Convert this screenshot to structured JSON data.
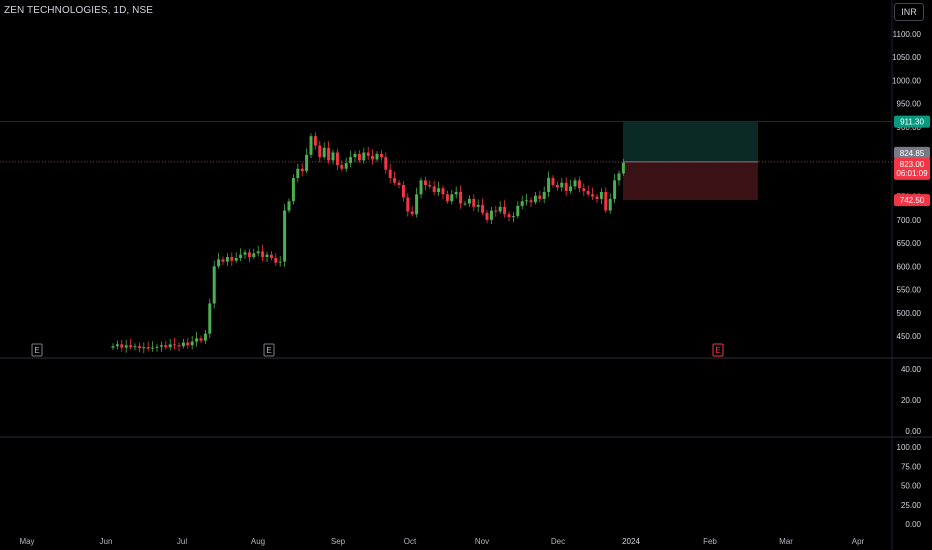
{
  "header": {
    "symbol": "ZEN TECHNOLOGIES, 1D, NSE",
    "currency": "INR"
  },
  "colors": {
    "up": "#4caf50",
    "down": "#f23645",
    "profit_zone": "#0b2a26",
    "loss_zone": "#3a1115",
    "target": "#089981",
    "stop": "#f23645",
    "grid": "#2a2e39"
  },
  "chart_data": {
    "type": "candlestick",
    "x_ticks": [
      "May",
      "Jun",
      "Jul",
      "Aug",
      "Sep",
      "Oct",
      "Nov",
      "Dec",
      "2024",
      "Feb",
      "Mar",
      "Apr"
    ],
    "y_ticks": [
      "450.00",
      "500.00",
      "550.00",
      "600.00",
      "650.00",
      "700.00",
      "750.00",
      "800.00",
      "850.00",
      "900.00",
      "950.00",
      "1000.00",
      "1050.00",
      "1100.00"
    ],
    "ylim": [
      405,
      1135
    ],
    "price_labels": {
      "target": "911.30",
      "entry": "824.85",
      "last": "823.00",
      "countdown": "06:01:09",
      "stop": "742.50"
    },
    "events": [
      "E",
      "E",
      "E"
    ],
    "pane2": {
      "ticks": [
        "40.00",
        "20.00",
        "0.00"
      ],
      "ylim": [
        0,
        50
      ]
    },
    "pane3": {
      "ticks": [
        "100.00",
        "75.00",
        "50.00",
        "25.00",
        "0.00"
      ],
      "ylim": [
        0,
        105
      ]
    },
    "series_close": [
      428,
      432,
      425,
      430,
      426,
      428,
      424,
      426,
      423,
      425,
      427,
      430,
      426,
      432,
      430,
      428,
      436,
      430,
      438,
      445,
      440,
      455,
      520,
      600,
      615,
      610,
      620,
      612,
      618,
      625,
      630,
      620,
      628,
      632,
      620,
      625,
      618,
      608,
      610,
      720,
      740,
      790,
      810,
      805,
      840,
      880,
      860,
      835,
      855,
      828,
      845,
      818,
      810,
      822,
      835,
      842,
      828,
      845,
      838,
      830,
      842,
      835,
      808,
      790,
      780,
      775,
      748,
      718,
      712,
      755,
      785,
      775,
      772,
      760,
      768,
      755,
      740,
      755,
      760,
      735,
      735,
      745,
      728,
      732,
      715,
      700,
      720,
      718,
      728,
      712,
      706,
      708,
      730,
      740,
      742,
      738,
      752,
      745,
      760,
      790,
      775,
      770,
      780,
      762,
      772,
      785,
      768,
      762,
      755,
      750,
      745,
      760,
      720,
      745,
      785,
      800,
      823
    ]
  }
}
